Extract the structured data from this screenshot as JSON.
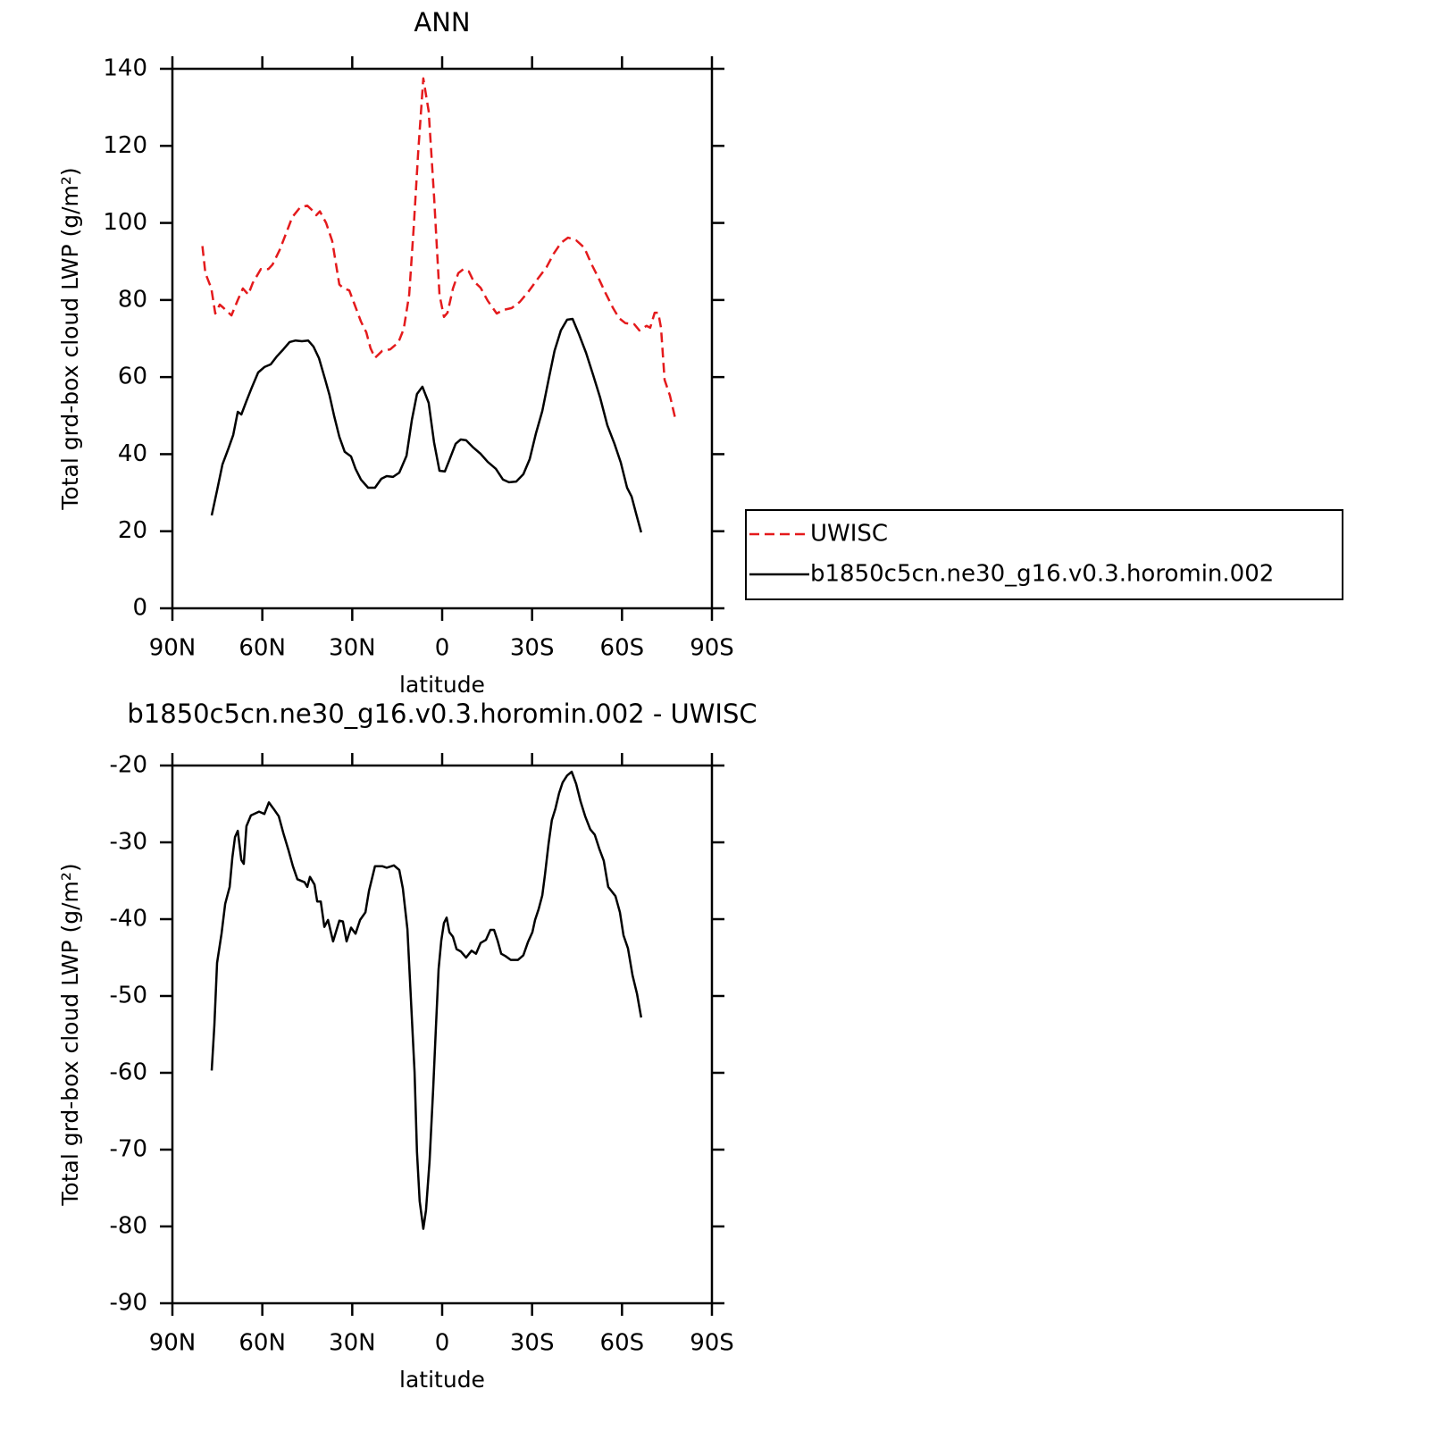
{
  "chart_data": [
    {
      "type": "line",
      "title": "ANN",
      "xlabel": "latitude",
      "ylabel": "Total grd-box cloud LWP (g/m²)",
      "xlim": [
        90,
        -90
      ],
      "xticks": [
        {
          "value": 90,
          "label": "90N"
        },
        {
          "value": 60,
          "label": "60N"
        },
        {
          "value": 30,
          "label": "30N"
        },
        0,
        {
          "value": -30,
          "label": "30S"
        },
        {
          "value": -60,
          "label": "60S"
        },
        {
          "value": -90,
          "label": "90S"
        }
      ],
      "ylim": [
        0,
        140
      ],
      "yticks": [
        0,
        20,
        40,
        60,
        80,
        100,
        120,
        140
      ],
      "legend": "right",
      "series": [
        {
          "name": "UWISC",
          "color": "#e41a1c",
          "line_style": "dashed",
          "x": [
            80,
            79,
            77,
            75.7,
            74.2,
            73,
            70.3,
            68.2,
            66.5,
            64.7,
            63.2,
            60.5,
            58,
            56.6,
            54.2,
            52.2,
            50,
            47.4,
            45,
            43.5,
            42,
            40.8,
            38.7,
            36.7,
            34.3,
            32.8,
            31,
            29.2,
            27.1,
            25.3,
            23.9,
            22.4,
            20,
            17.3,
            14.6,
            12.8,
            11,
            9.5,
            8,
            6.3,
            4.5,
            2.7,
            0.9,
            -0.6,
            -1.8,
            -3.6,
            -5.4,
            -7.1,
            -8.9,
            -10.4,
            -12.8,
            -15.2,
            -18.2,
            -20.3,
            -23.2,
            -25.9,
            -28.9,
            -31.9,
            -34.8,
            -37.2,
            -39.6,
            -42,
            -44.7,
            -47.4,
            -49.7,
            -52.1,
            -54.5,
            -56.9,
            -59,
            -61.1,
            -64.1,
            -65.8,
            -68.2,
            -69.4,
            -70.9,
            -72.1,
            -73,
            -74.2,
            -76,
            -77.8
          ],
          "values": [
            94,
            87,
            83,
            76.5,
            78.8,
            78,
            76,
            80,
            83,
            81.4,
            84.4,
            88,
            88,
            89.2,
            93,
            97,
            101.5,
            104,
            104.5,
            103.4,
            102,
            103,
            100,
            95.3,
            84,
            83,
            82.5,
            78.8,
            74.4,
            71.6,
            67.5,
            65,
            66.8,
            67.2,
            69,
            72.5,
            81.4,
            98.7,
            118.5,
            137.5,
            129,
            107,
            81.4,
            75.6,
            76.7,
            83,
            87,
            88,
            87.4,
            85,
            83.2,
            79.8,
            76.5,
            77.4,
            77.9,
            79.5,
            82.3,
            85.5,
            88.5,
            92,
            94.8,
            96.2,
            95.5,
            93.6,
            89.5,
            85.8,
            81.8,
            78.1,
            75.3,
            74,
            73.7,
            72.1,
            73.3,
            72.8,
            76.7,
            76.7,
            72.8,
            59.3,
            55.2,
            49.1
          ]
        },
        {
          "name": "b1850c5cn.ne30_g16.v0.3.horomin.002",
          "color": "#000000",
          "line_style": "solid",
          "x": [
            76.9,
            75.1,
            73.3,
            71.2,
            69.7,
            68.2,
            67,
            65.3,
            63.5,
            61.4,
            59.3,
            57.2,
            55.1,
            53,
            50.9,
            48.9,
            46.8,
            44.7,
            42.9,
            41.1,
            39,
            37.6,
            36.1,
            34.3,
            32.5,
            30.4,
            28.9,
            27.1,
            24.7,
            22.4,
            20.3,
            18.5,
            16.4,
            14.3,
            11.9,
            10.1,
            8.4,
            6.6,
            4.5,
            2.7,
            0.9,
            -0.9,
            -2.4,
            -4.5,
            -6.2,
            -8,
            -10.4,
            -12.8,
            -15.2,
            -17.9,
            -20.3,
            -22.3,
            -24.7,
            -27.1,
            -29.2,
            -31.3,
            -33.4,
            -35.5,
            -37.5,
            -39.6,
            -41.7,
            -43.5,
            -45.6,
            -48,
            -50.3,
            -52.7,
            -55.1,
            -57.5,
            -59.6,
            -61.7,
            -63.2,
            -64.7,
            -66.4
          ],
          "values": [
            24.1,
            30.6,
            37.3,
            41.7,
            45,
            51,
            50.3,
            53.8,
            57.3,
            61.2,
            62.6,
            63.3,
            65.4,
            67.2,
            69.1,
            69.5,
            69.3,
            69.5,
            67.9,
            64.9,
            59.3,
            55.4,
            50.1,
            44.5,
            40.6,
            39.4,
            36.2,
            33.4,
            31.3,
            31.3,
            33.6,
            34.3,
            34.1,
            35.2,
            39.6,
            48.9,
            55.6,
            57.5,
            53.3,
            43.1,
            35.7,
            35.5,
            38.5,
            42.7,
            43.8,
            43.6,
            41.7,
            40.1,
            38,
            36.2,
            33.4,
            32.7,
            32.9,
            34.8,
            38.7,
            45.4,
            51.2,
            59.3,
            66.8,
            72.1,
            74.9,
            75.1,
            71.2,
            66.3,
            60.7,
            54.7,
            47.5,
            42.7,
            37.8,
            31.3,
            29,
            24.6,
            19.7
          ]
        }
      ]
    },
    {
      "type": "line",
      "title": "b1850c5cn.ne30_g16.v0.3.horomin.002 - UWISC",
      "xlabel": "latitude",
      "ylabel": "Total grd-box cloud LWP (g/m²)",
      "xlim": [
        90,
        -90
      ],
      "xticks": [
        {
          "value": 90,
          "label": "90N"
        },
        {
          "value": 60,
          "label": "60N"
        },
        {
          "value": 30,
          "label": "30N"
        },
        0,
        {
          "value": -30,
          "label": "30S"
        },
        {
          "value": -60,
          "label": "60S"
        },
        {
          "value": -90,
          "label": "90S"
        }
      ],
      "ylim": [
        -90,
        -20
      ],
      "yticks": [
        -90,
        -80,
        -70,
        -60,
        -50,
        -40,
        -30,
        -20
      ],
      "series": [
        {
          "color": "#000000",
          "line_style": "solid",
          "x": [
            76.9,
            76,
            75.1,
            73.6,
            72.4,
            70.9,
            70,
            69.1,
            68.2,
            67,
            66.2,
            65.3,
            63.8,
            61.1,
            59.3,
            57.8,
            56.3,
            54.5,
            53,
            51.3,
            49.8,
            48.3,
            45.9,
            45,
            44.1,
            42.6,
            41.7,
            40.5,
            39.3,
            38.1,
            36.4,
            34.3,
            33.1,
            31.9,
            30.4,
            28.9,
            27.4,
            25.6,
            24.4,
            22.4,
            20,
            18.5,
            16.1,
            14.3,
            13.1,
            11.6,
            10.4,
            9.2,
            8.4,
            7.5,
            6.3,
            5.4,
            4.2,
            3,
            2.1,
            1.2,
            0.3,
            -0.6,
            -1.5,
            -2.4,
            -3.6,
            -4.8,
            -6.2,
            -8,
            -9.8,
            -11.3,
            -12.8,
            -14.6,
            -16.1,
            -17.3,
            -18.5,
            -19.7,
            -21.1,
            -22.9,
            -25.3,
            -27.1,
            -28.6,
            -30.1,
            -31,
            -32.2,
            -33.4,
            -34.3,
            -35.5,
            -36.6,
            -37.8,
            -39,
            -40.2,
            -41.7,
            -43.2,
            -44.7,
            -46.2,
            -47.7,
            -49.4,
            -50.9,
            -52.4,
            -53.9,
            -55.4,
            -57.8,
            -59.3,
            -60.5,
            -62,
            -63.5,
            -65,
            -66.4
          ],
          "values": [
            -59.7,
            -53.8,
            -45.7,
            -41.9,
            -38,
            -35.8,
            -32,
            -29.3,
            -28.5,
            -32.3,
            -32.8,
            -27.9,
            -26.5,
            -26,
            -26.3,
            -24.8,
            -25.6,
            -26.6,
            -28.8,
            -31,
            -33.1,
            -34.8,
            -35.2,
            -35.8,
            -34.5,
            -35.5,
            -37.7,
            -37.7,
            -41,
            -40.1,
            -42.9,
            -40.2,
            -40.3,
            -42.9,
            -41.1,
            -41.9,
            -40.1,
            -39.1,
            -36.3,
            -33.1,
            -33.1,
            -33.3,
            -33,
            -33.6,
            -36,
            -41.3,
            -50.6,
            -59.9,
            -70.3,
            -76.7,
            -80.3,
            -77.9,
            -71.5,
            -62.2,
            -54.1,
            -46.5,
            -42.8,
            -40.5,
            -39.8,
            -41.7,
            -42.3,
            -43.9,
            -44.2,
            -45,
            -44.1,
            -44.5,
            -43.1,
            -42.7,
            -41.4,
            -41.4,
            -42.8,
            -44.5,
            -44.8,
            -45.3,
            -45.3,
            -44.7,
            -43,
            -41.7,
            -40.1,
            -38.7,
            -36.9,
            -34.2,
            -30.2,
            -27.1,
            -25.6,
            -23.6,
            -22.2,
            -21.3,
            -20.8,
            -22.4,
            -24.7,
            -26.6,
            -28.3,
            -29,
            -30.8,
            -32.4,
            -35.8,
            -37,
            -39.1,
            -42.1,
            -43.8,
            -47.3,
            -49.7,
            -52.8
          ]
        }
      ]
    }
  ]
}
